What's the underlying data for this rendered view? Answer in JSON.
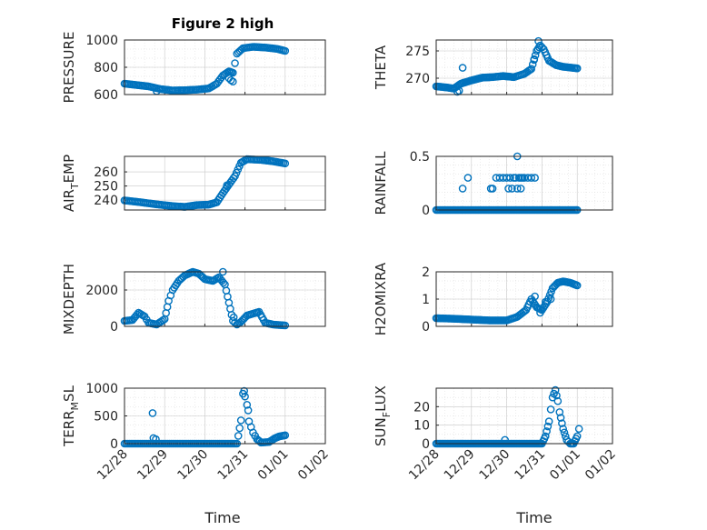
{
  "figure": {
    "title": "Figure 2 high",
    "marker_color": "#0072bd",
    "x_ticks": [
      "12/28",
      "12/29",
      "12/30",
      "12/31",
      "01/01",
      "01/02"
    ],
    "x_label": "Time"
  },
  "chart_data": [
    {
      "id": "pressure",
      "type": "scatter",
      "title": "Figure 2 high",
      "ylabel": "PRESSURE",
      "ylim": [
        600,
        1000
      ],
      "yticks": [
        "600",
        "800",
        "1000"
      ],
      "xlim": [
        0,
        5
      ],
      "x_unit": "days since 12/28",
      "xlabel": "",
      "shape": [
        [
          0.0,
          680
        ],
        [
          0.3,
          670
        ],
        [
          0.6,
          660
        ],
        [
          0.9,
          640
        ],
        [
          1.2,
          630
        ],
        [
          1.5,
          632
        ],
        [
          1.8,
          636
        ],
        [
          2.1,
          645
        ],
        [
          2.3,
          680
        ],
        [
          2.45,
          740
        ],
        [
          2.6,
          770
        ],
        [
          2.7,
          760
        ],
        [
          2.8,
          900
        ],
        [
          2.95,
          940
        ],
        [
          3.2,
          950
        ],
        [
          3.5,
          945
        ],
        [
          3.8,
          935
        ],
        [
          4.0,
          920
        ]
      ],
      "outliers": [
        [
          2.6,
          720
        ],
        [
          2.65,
          705
        ],
        [
          2.7,
          695
        ],
        [
          0.8,
          625
        ]
      ],
      "grid": true,
      "minor_grid": true
    },
    {
      "id": "theta",
      "type": "scatter",
      "ylabel": "THETA",
      "ylim": [
        267,
        277
      ],
      "yticks": [
        "270",
        "275"
      ],
      "xlim": [
        0,
        5
      ],
      "x_unit": "days since 12/28",
      "shape": [
        [
          0.0,
          268.5
        ],
        [
          0.3,
          268.3
        ],
        [
          0.5,
          268.1
        ],
        [
          0.7,
          269.0
        ],
        [
          1.0,
          269.6
        ],
        [
          1.3,
          270.1
        ],
        [
          1.6,
          270.2
        ],
        [
          1.9,
          270.4
        ],
        [
          2.2,
          270.2
        ],
        [
          2.5,
          270.8
        ],
        [
          2.7,
          271.7
        ],
        [
          2.85,
          275.0
        ],
        [
          2.95,
          276.0
        ],
        [
          3.05,
          275.3
        ],
        [
          3.2,
          273.2
        ],
        [
          3.4,
          272.4
        ],
        [
          3.6,
          272.1
        ],
        [
          4.0,
          271.8
        ]
      ],
      "outliers": [
        [
          0.75,
          271.9
        ],
        [
          0.6,
          267.5
        ],
        [
          0.65,
          267.7
        ],
        [
          2.9,
          276.8
        ],
        [
          2.78,
          273.5
        ]
      ],
      "grid": true,
      "minor_grid": true
    },
    {
      "id": "air_temp",
      "type": "scatter",
      "ylabel_main": "AIR",
      "ylabel_sub": "T",
      "ylabel_end": "EMP",
      "ylim": [
        233,
        271
      ],
      "yticks": [
        "240",
        "250",
        "260"
      ],
      "xlim": [
        0,
        5
      ],
      "x_unit": "days since 12/28",
      "shape": [
        [
          0.0,
          239.8
        ],
        [
          0.4,
          238.5
        ],
        [
          0.8,
          237.0
        ],
        [
          1.2,
          235.8
        ],
        [
          1.5,
          235.2
        ],
        [
          1.8,
          236.5
        ],
        [
          2.1,
          236.8
        ],
        [
          2.3,
          238.5
        ],
        [
          2.45,
          245.0
        ],
        [
          2.6,
          251.0
        ],
        [
          2.75,
          257.0
        ],
        [
          2.9,
          266.5
        ],
        [
          3.05,
          269.0
        ],
        [
          3.4,
          268.5
        ],
        [
          3.7,
          267.5
        ],
        [
          4.0,
          266.0
        ]
      ],
      "outliers": [
        [
          2.55,
          250.5
        ]
      ],
      "grid": true,
      "minor_grid": false
    },
    {
      "id": "rainfall",
      "type": "scatter",
      "ylabel": "RAINFALL",
      "ylim": [
        0,
        0.5
      ],
      "yticks": [
        "0",
        "0.5"
      ],
      "xlim": [
        0,
        5
      ],
      "x_unit": "days since 12/28",
      "baseline": [
        [
          0.0,
          0.0
        ],
        [
          4.0,
          0.0
        ]
      ],
      "outliers": [
        [
          0.75,
          0.2
        ],
        [
          0.9,
          0.3
        ],
        [
          1.55,
          0.2
        ],
        [
          1.6,
          0.2
        ],
        [
          1.7,
          0.3
        ],
        [
          1.8,
          0.3
        ],
        [
          1.9,
          0.3
        ],
        [
          2.0,
          0.3
        ],
        [
          2.05,
          0.2
        ],
        [
          2.1,
          0.3
        ],
        [
          2.15,
          0.2
        ],
        [
          2.2,
          0.3
        ],
        [
          2.25,
          0.3
        ],
        [
          2.3,
          0.2
        ],
        [
          2.35,
          0.3
        ],
        [
          2.4,
          0.2
        ],
        [
          2.45,
          0.3
        ],
        [
          2.5,
          0.3
        ],
        [
          2.6,
          0.3
        ],
        [
          2.3,
          0.5
        ],
        [
          2.4,
          0.3
        ],
        [
          2.7,
          0.3
        ],
        [
          2.8,
          0.3
        ]
      ],
      "grid": true,
      "minor_grid": true
    },
    {
      "id": "mixdepth",
      "type": "scatter",
      "ylabel": "MIXDEPTH",
      "ylim": [
        0,
        3000
      ],
      "yticks": [
        "0",
        "2000"
      ],
      "xlim": [
        0,
        5
      ],
      "x_unit": "days since 12/28",
      "shape": [
        [
          0.0,
          300
        ],
        [
          0.2,
          350
        ],
        [
          0.35,
          750
        ],
        [
          0.5,
          550
        ],
        [
          0.6,
          200
        ],
        [
          0.8,
          100
        ],
        [
          1.0,
          400
        ],
        [
          1.1,
          1400
        ],
        [
          1.2,
          2000
        ],
        [
          1.35,
          2500
        ],
        [
          1.5,
          2800
        ],
        [
          1.7,
          3000
        ],
        [
          1.85,
          2900
        ],
        [
          2.0,
          2600
        ],
        [
          2.2,
          2500
        ],
        [
          2.35,
          2700
        ],
        [
          2.5,
          2300
        ],
        [
          2.6,
          1300
        ],
        [
          2.7,
          300
        ],
        [
          2.8,
          100
        ],
        [
          2.9,
          250
        ],
        [
          3.05,
          600
        ],
        [
          3.2,
          700
        ],
        [
          3.35,
          800
        ],
        [
          3.5,
          200
        ],
        [
          3.7,
          100
        ],
        [
          4.0,
          50
        ]
      ],
      "outliers": [
        [
          2.45,
          3000
        ],
        [
          2.72,
          500
        ],
        [
          3.3,
          750
        ]
      ],
      "grid": true,
      "minor_grid": true
    },
    {
      "id": "h2omixra",
      "type": "scatter",
      "ylabel": "H2OMIXRA",
      "ylim": [
        0,
        2
      ],
      "yticks": [
        "0",
        "1",
        "2"
      ],
      "xlim": [
        0,
        5
      ],
      "x_unit": "days since 12/28",
      "shape": [
        [
          0.0,
          0.3
        ],
        [
          0.5,
          0.28
        ],
        [
          1.0,
          0.25
        ],
        [
          1.5,
          0.22
        ],
        [
          2.0,
          0.22
        ],
        [
          2.3,
          0.35
        ],
        [
          2.55,
          0.6
        ],
        [
          2.7,
          1.0
        ],
        [
          2.85,
          0.7
        ],
        [
          3.0,
          0.6
        ],
        [
          3.15,
          0.9
        ],
        [
          3.3,
          1.4
        ],
        [
          3.45,
          1.6
        ],
        [
          3.6,
          1.65
        ],
        [
          3.8,
          1.6
        ],
        [
          4.0,
          1.5
        ]
      ],
      "outliers": [
        [
          2.8,
          1.1
        ],
        [
          3.1,
          0.9
        ],
        [
          2.95,
          0.5
        ],
        [
          3.25,
          1.0
        ]
      ],
      "grid": true,
      "minor_grid": true
    },
    {
      "id": "terr_msl",
      "type": "scatter",
      "ylabel_main": "TERR",
      "ylabel_sub": "M",
      "ylabel_end": "SL",
      "ylim": [
        0,
        1000
      ],
      "yticks": [
        "0",
        "500",
        "1000"
      ],
      "xlim": [
        0,
        5
      ],
      "x_unit": "days since 12/28",
      "shape": [
        [
          0.0,
          0
        ],
        [
          2.8,
          0
        ],
        [
          2.9,
          420
        ],
        [
          2.95,
          900
        ],
        [
          3.0,
          850
        ],
        [
          3.05,
          700
        ],
        [
          3.1,
          400
        ],
        [
          3.15,
          300
        ],
        [
          3.2,
          200
        ],
        [
          3.3,
          80
        ],
        [
          3.4,
          20
        ],
        [
          3.6,
          30
        ],
        [
          3.75,
          100
        ],
        [
          3.85,
          130
        ],
        [
          4.0,
          150
        ]
      ],
      "outliers": [
        [
          0.7,
          550
        ],
        [
          0.72,
          100
        ],
        [
          0.78,
          80
        ],
        [
          2.98,
          950
        ],
        [
          3.08,
          600
        ]
      ],
      "grid": true,
      "minor_grid": true
    },
    {
      "id": "sun_flux",
      "type": "scatter",
      "ylabel_main": "SUN",
      "ylabel_sub": "F",
      "ylabel_end": "LUX",
      "ylim": [
        0,
        30
      ],
      "yticks": [
        "0",
        "10",
        "20"
      ],
      "xlim": [
        0,
        5
      ],
      "x_unit": "days since 12/28",
      "shape": [
        [
          0.0,
          0
        ],
        [
          3.0,
          0
        ],
        [
          3.1,
          4
        ],
        [
          3.2,
          12
        ],
        [
          3.3,
          25
        ],
        [
          3.38,
          29
        ],
        [
          3.45,
          23
        ],
        [
          3.5,
          17
        ],
        [
          3.6,
          8
        ],
        [
          3.7,
          2
        ],
        [
          3.8,
          0
        ],
        [
          3.9,
          0
        ],
        [
          4.0,
          4
        ],
        [
          4.05,
          8
        ]
      ],
      "outliers": [
        [
          1.95,
          2
        ]
      ],
      "grid": true,
      "minor_grid": true
    }
  ]
}
